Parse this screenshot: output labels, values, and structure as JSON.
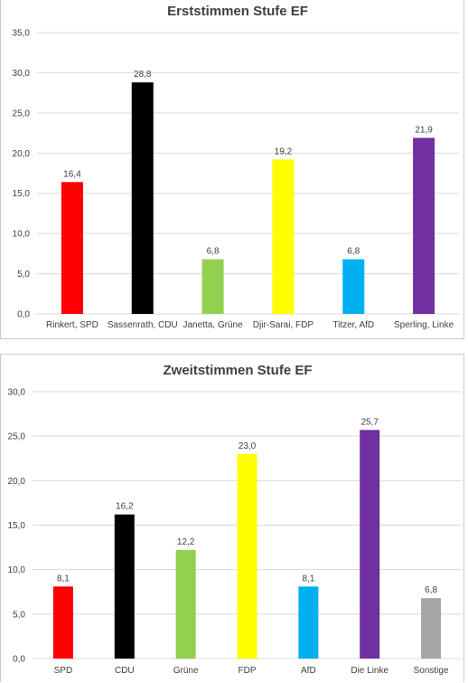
{
  "chart_data": [
    {
      "type": "bar",
      "title": "Erststimmen Stufe EF",
      "categories": [
        "Rinkert, SPD",
        "Sassenrath, CDU",
        "Janetta, Grüne",
        "Djir-Sarai, FDP",
        "Titzer, AfD",
        "Sperling, Linke"
      ],
      "values": [
        16.4,
        28.8,
        6.8,
        19.2,
        6.8,
        21.9
      ],
      "value_labels": [
        "16,4",
        "28,8",
        "6,8",
        "19,2",
        "6,8",
        "21,9"
      ],
      "colors": [
        "#ff0000",
        "#000000",
        "#92d050",
        "#ffff00",
        "#00b0f0",
        "#7030a0"
      ],
      "yticks": [
        0,
        5,
        10,
        15,
        20,
        25,
        30,
        35
      ],
      "ytick_labels": [
        "0,0",
        "5,0",
        "10,0",
        "15,0",
        "20,0",
        "25,0",
        "30,0",
        "35,0"
      ],
      "ylim": [
        0,
        35
      ],
      "grid": true,
      "legend": "none"
    },
    {
      "type": "bar",
      "title": "Zweitstimmen Stufe EF",
      "categories": [
        "SPD",
        "CDU",
        "Grüne",
        "FDP",
        "AfD",
        "Die Linke",
        "Sonstige"
      ],
      "values": [
        8.1,
        16.2,
        12.2,
        23.0,
        8.1,
        25.7,
        6.8
      ],
      "value_labels": [
        "8,1",
        "16,2",
        "12,2",
        "23,0",
        "8,1",
        "25,7",
        "6,8"
      ],
      "colors": [
        "#ff0000",
        "#000000",
        "#92d050",
        "#ffff00",
        "#00b0f0",
        "#7030a0",
        "#a6a6a6"
      ],
      "yticks": [
        0,
        5,
        10,
        15,
        20,
        25,
        30
      ],
      "ytick_labels": [
        "0,0",
        "5,0",
        "10,0",
        "15,0",
        "20,0",
        "25,0",
        "30,0"
      ],
      "ylim": [
        0,
        30
      ],
      "grid": true,
      "legend": "none"
    }
  ]
}
